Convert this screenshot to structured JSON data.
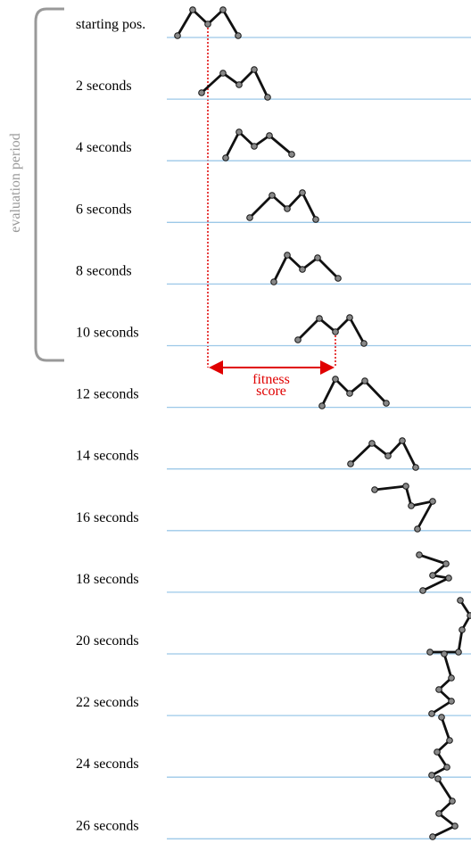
{
  "rows": [
    {
      "label": "starting pos."
    },
    {
      "label": "2 seconds"
    },
    {
      "label": "4 seconds"
    },
    {
      "label": "6 seconds"
    },
    {
      "label": "8 seconds"
    },
    {
      "label": "10 seconds"
    },
    {
      "label": "12 seconds"
    },
    {
      "label": "14 seconds"
    },
    {
      "label": "16 seconds"
    },
    {
      "label": "18 seconds"
    },
    {
      "label": "20 seconds"
    },
    {
      "label": "22 seconds"
    },
    {
      "label": "24 seconds"
    },
    {
      "label": "26 seconds"
    }
  ],
  "bracket": {
    "label": "evaluation period"
  },
  "fitness": {
    "line1": "fitness",
    "line2": "score"
  }
}
